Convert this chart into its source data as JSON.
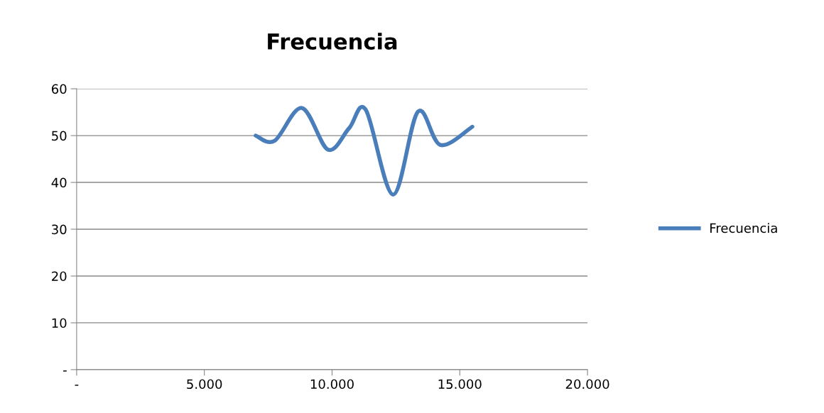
{
  "chart_data": {
    "type": "line",
    "title": "Frecuencia",
    "x": [
      7010,
      7750,
      8820,
      9840,
      10670,
      11320,
      12390,
      13360,
      14240,
      15490
    ],
    "series": [
      {
        "name": "Frecuencia",
        "color": "#4a7ebb",
        "values": [
          50,
          48.9,
          55.9,
          47.0,
          51.6,
          55.5,
          37.4,
          55.1,
          48.0,
          51.9
        ]
      }
    ],
    "xlim": [
      0,
      20000
    ],
    "xticks": [
      {
        "value": 0,
        "label": "-"
      },
      {
        "value": 5000,
        "label": "5.000"
      },
      {
        "value": 10000,
        "label": "10.000"
      },
      {
        "value": 15000,
        "label": "15.000"
      },
      {
        "value": 20000,
        "label": "20.000"
      }
    ],
    "ylim": [
      0,
      60
    ],
    "yticks": [
      {
        "value": 0,
        "label": "-"
      },
      10,
      20,
      30,
      40,
      50,
      60
    ],
    "grid": "y",
    "legend": "right",
    "marker": "none",
    "line_style": "solid"
  }
}
